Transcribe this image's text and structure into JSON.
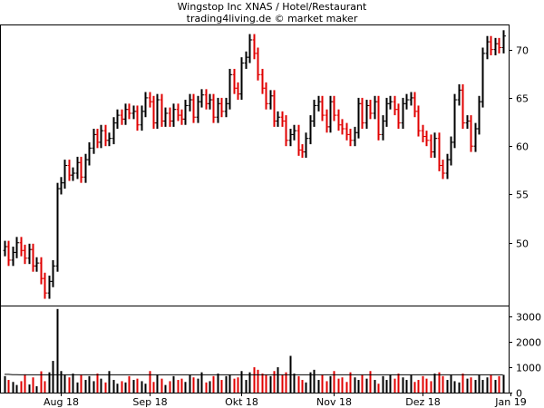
{
  "chart_data": {
    "type": "ohlc",
    "title": "Wingstop Inc XNAS / Hotel/Restaurant",
    "subtitle": "trading4living.de © market maker",
    "colors": {
      "up": "#000000",
      "down": "#e00000",
      "volume_avg": "#000000",
      "grid": "#000000"
    },
    "price_axis": {
      "ylim": [
        43.5,
        72.5
      ],
      "ticks": [
        50,
        55,
        60,
        65,
        70
      ]
    },
    "volume_axis": {
      "ylim": [
        0,
        3400
      ],
      "ticks": [
        0,
        1000,
        2000,
        3000
      ]
    },
    "x_labels": [
      {
        "label": "Aug 18",
        "index": 14
      },
      {
        "label": "Sep 18",
        "index": 36
      },
      {
        "label": "Okt 18",
        "index": 59
      },
      {
        "label": "Nov 18",
        "index": 82
      },
      {
        "label": "Dez 18",
        "index": 104
      },
      {
        "label": "Jan 19",
        "index": 126
      }
    ],
    "closes": [
      49.6,
      48.2,
      49.0,
      50.0,
      49.2,
      48.4,
      49.3,
      47.6,
      47.9,
      46.3,
      44.8,
      46.0,
      47.6,
      55.6,
      56.2,
      58.0,
      57.0,
      57.2,
      58.3,
      56.8,
      58.6,
      59.8,
      61.2,
      60.4,
      61.6,
      60.6,
      60.8,
      62.4,
      63.2,
      62.8,
      63.8,
      63.4,
      63.6,
      62.2,
      63.6,
      65.0,
      64.6,
      62.4,
      64.8,
      62.6,
      63.4,
      62.6,
      63.8,
      63.2,
      62.8,
      64.2,
      64.8,
      63.0,
      64.6,
      65.3,
      64.4,
      64.8,
      63.0,
      64.4,
      63.6,
      64.4,
      67.4,
      66.0,
      65.4,
      68.6,
      69.2,
      71.0,
      69.6,
      67.4,
      66.0,
      64.4,
      65.2,
      62.6,
      63.0,
      62.6,
      60.6,
      61.2,
      61.6,
      59.6,
      59.4,
      60.8,
      62.6,
      64.2,
      64.6,
      63.2,
      62.0,
      64.6,
      63.2,
      62.2,
      61.8,
      61.2,
      60.6,
      61.4,
      64.4,
      62.4,
      64.2,
      63.4,
      64.6,
      61.2,
      62.6,
      64.4,
      64.6,
      63.8,
      62.4,
      64.4,
      64.8,
      65.0,
      63.6,
      61.6,
      61.0,
      60.6,
      59.4,
      60.8,
      58.0,
      57.2,
      58.6,
      60.4,
      64.8,
      65.8,
      62.4,
      62.6,
      60.0,
      61.8,
      64.6,
      69.6,
      70.8,
      70.0,
      70.6,
      70.2,
      71.4
    ],
    "volumes": [
      650,
      500,
      420,
      300,
      450,
      720,
      320,
      600,
      250,
      840,
      450,
      800,
      1250,
      3300,
      850,
      700,
      600,
      750,
      400,
      700,
      500,
      650,
      450,
      750,
      550,
      400,
      850,
      500,
      350,
      450,
      400,
      650,
      500,
      550,
      450,
      350,
      850,
      420,
      700,
      550,
      300,
      450,
      650,
      500,
      550,
      420,
      700,
      600,
      550,
      800,
      400,
      450,
      650,
      750,
      500,
      650,
      700,
      550,
      600,
      850,
      500,
      800,
      1000,
      900,
      750,
      700,
      650,
      850,
      1000,
      700,
      800,
      1450,
      750,
      650,
      500,
      400,
      800,
      900,
      500,
      700,
      450,
      650,
      850,
      550,
      600,
      420,
      800,
      600,
      500,
      700,
      550,
      850,
      500,
      350,
      650,
      500,
      700,
      550,
      750,
      600,
      500,
      700,
      420,
      500,
      650,
      550,
      450,
      750,
      800,
      650,
      500,
      700,
      450,
      400,
      750,
      550,
      600,
      500,
      700,
      500,
      600,
      700,
      500,
      650,
      700
    ],
    "volume_avg": [
      720,
      720,
      710,
      705,
      700,
      700,
      700,
      700,
      700,
      700,
      700,
      700,
      700,
      700,
      700,
      700,
      700,
      700,
      700,
      700,
      700,
      700,
      700,
      700,
      700,
      700,
      700,
      700,
      700,
      700,
      700,
      700,
      700,
      700,
      700,
      700,
      700,
      700,
      700,
      700,
      700,
      700,
      700,
      700,
      700,
      700,
      700,
      700,
      700,
      700,
      700,
      700,
      700,
      700,
      700,
      700,
      700,
      700,
      700,
      700,
      700,
      700,
      700,
      700,
      700,
      700,
      700,
      700,
      700,
      700,
      700,
      700,
      700,
      700,
      700,
      700,
      700,
      700,
      700,
      700,
      700,
      700,
      700,
      700,
      700,
      700,
      700,
      700,
      700,
      700,
      700,
      700,
      700,
      700,
      700,
      700,
      700,
      700,
      700,
      700,
      700,
      700,
      700,
      700,
      700,
      700,
      700,
      700,
      700,
      700,
      700,
      700,
      700,
      700,
      700,
      700,
      700,
      700,
      700,
      700,
      700,
      700,
      700,
      700,
      700
    ]
  }
}
